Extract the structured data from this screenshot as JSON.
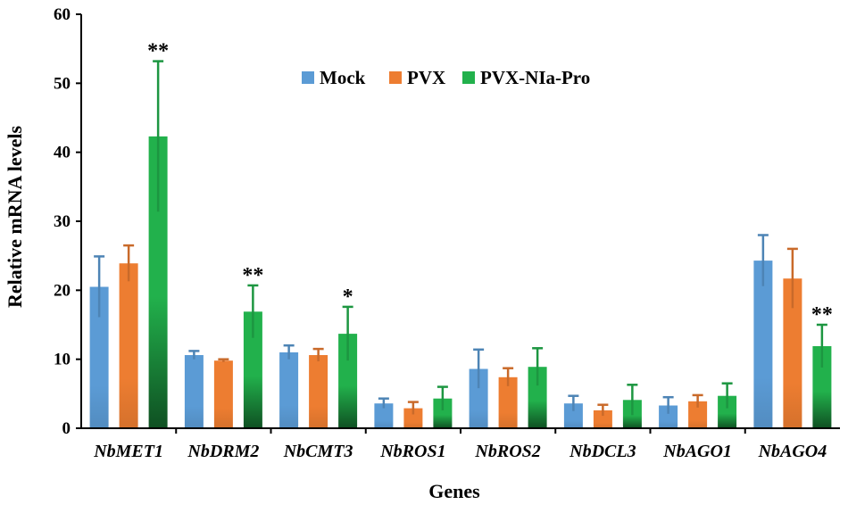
{
  "chart_data": {
    "type": "bar",
    "title": "",
    "xlabel": "Genes",
    "ylabel": "Relative mRNA levels",
    "ylim": [
      0,
      60
    ],
    "yticks": [
      0,
      10,
      20,
      30,
      40,
      50,
      60
    ],
    "categories": [
      "NbMET1",
      "NbDRM2",
      "NbCMT3",
      "NbROS1",
      "NbROS2",
      "NbDCL3",
      "NbAGO1",
      "NbAGO4"
    ],
    "series": [
      {
        "name": "Mock",
        "color": "#5b9bd5",
        "values": [
          20.5,
          10.6,
          11.0,
          3.6,
          8.6,
          3.6,
          3.3,
          24.3
        ],
        "errors": [
          4.4,
          0.6,
          1.0,
          0.7,
          2.8,
          1.1,
          1.2,
          3.7
        ]
      },
      {
        "name": "PVX",
        "color": "#ed7d31",
        "values": [
          23.9,
          9.8,
          10.6,
          2.9,
          7.4,
          2.6,
          3.9,
          21.7
        ],
        "errors": [
          2.6,
          0.2,
          0.9,
          0.9,
          1.3,
          0.8,
          0.9,
          4.3
        ]
      },
      {
        "name": "PVX-NIa-Pro",
        "color": "#22b14c",
        "values": [
          42.3,
          16.9,
          13.7,
          4.3,
          8.9,
          4.1,
          4.7,
          11.9
        ],
        "errors": [
          10.9,
          3.8,
          3.9,
          1.7,
          2.7,
          2.2,
          1.8,
          3.1
        ]
      }
    ],
    "significance": [
      {
        "category": "NbMET1",
        "series": "PVX-NIa-Pro",
        "label": "**"
      },
      {
        "category": "NbDRM2",
        "series": "PVX-NIa-Pro",
        "label": "**"
      },
      {
        "category": "NbCMT3",
        "series": "PVX-NIa-Pro",
        "label": "*"
      },
      {
        "category": "NbAGO4",
        "series": "PVX-NIa-Pro",
        "label": "**"
      }
    ],
    "legend": {
      "placement": "top-center"
    },
    "grid": false
  }
}
